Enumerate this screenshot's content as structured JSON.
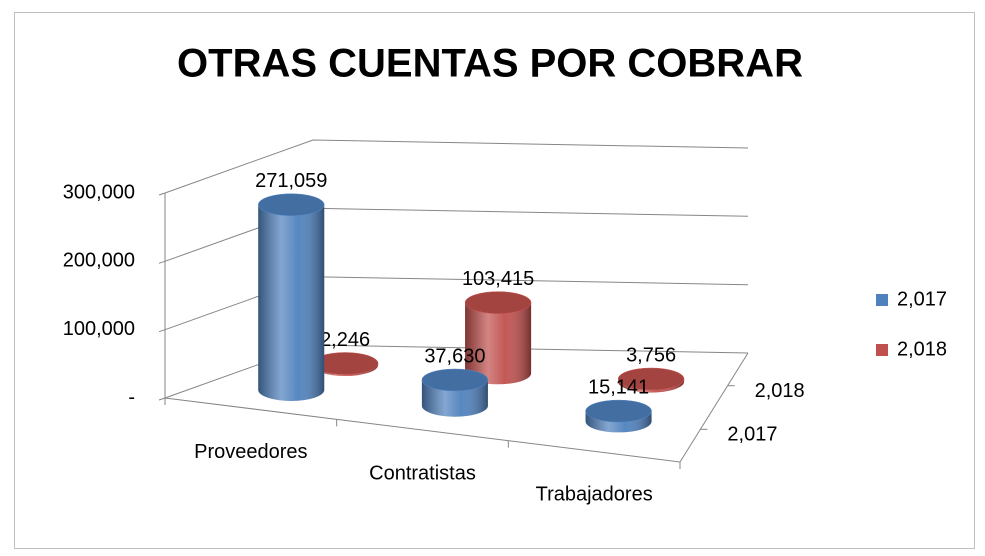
{
  "chart_data": {
    "type": "cylinder3d",
    "title": "OTRAS CUENTAS POR COBRAR",
    "categories": [
      "Proveedores",
      "Contratistas",
      "Trabajadores"
    ],
    "series": [
      {
        "name": "2,017",
        "color": "#4f81bd",
        "values": [
          271059,
          37630,
          15141
        ],
        "value_labels": [
          "271,059",
          "37,630",
          "15,141"
        ]
      },
      {
        "name": "2,018",
        "color": "#c0504d",
        "values": [
          2246,
          103415,
          3756
        ],
        "value_labels": [
          "2,246",
          "103,415",
          "3,756"
        ]
      }
    ],
    "ylim": [
      0,
      300000
    ],
    "yticks": [
      {
        "value": 0,
        "label": "-"
      },
      {
        "value": 100000,
        "label": "100,000"
      },
      {
        "value": 200000,
        "label": "200,000"
      },
      {
        "value": 300000,
        "label": "300,000"
      }
    ],
    "grid": true,
    "legend": "right"
  }
}
